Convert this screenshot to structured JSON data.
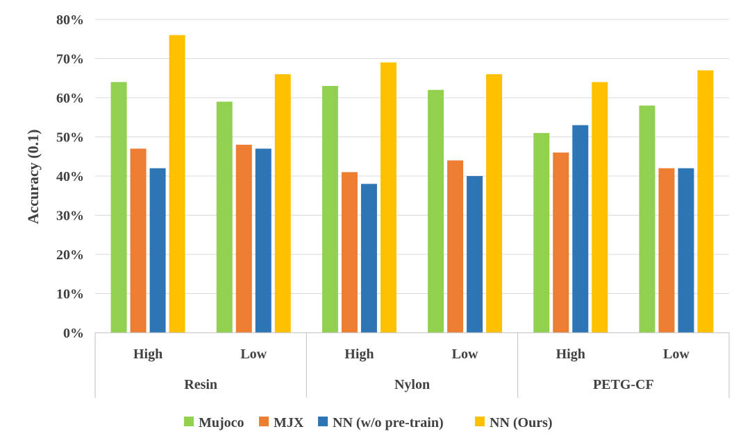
{
  "chart_data": {
    "type": "bar",
    "ylabel": "Accuracy (0.1)",
    "ylim": [
      0,
      80
    ],
    "yticks": [
      "0%",
      "10%",
      "20%",
      "30%",
      "40%",
      "50%",
      "60%",
      "70%",
      "80%"
    ],
    "grid": true,
    "groups": [
      {
        "name": "Resin",
        "categories": [
          "High",
          "Low"
        ]
      },
      {
        "name": "Nylon",
        "categories": [
          "High",
          "Low"
        ]
      },
      {
        "name": "PETG-CF",
        "categories": [
          "High",
          "Low"
        ]
      }
    ],
    "series": [
      {
        "name": "Mujoco",
        "color": "#92D050",
        "values": [
          64,
          59,
          63,
          62,
          51,
          58
        ]
      },
      {
        "name": "MJX",
        "color": "#ED7D31",
        "values": [
          47,
          48,
          41,
          44,
          46,
          42
        ]
      },
      {
        "name": "NN (w/o pre-train)",
        "color": "#2E75B6",
        "values": [
          42,
          47,
          38,
          40,
          53,
          42
        ]
      },
      {
        "name": "NN (Ours)",
        "color": "#FFC000",
        "values": [
          76,
          66,
          69,
          66,
          64,
          67
        ]
      }
    ],
    "legend_position": "bottom"
  }
}
